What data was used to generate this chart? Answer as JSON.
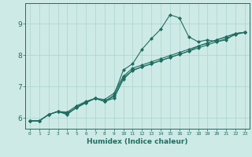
{
  "xlabel": "Humidex (Indice chaleur)",
  "background_color": "#ceeae6",
  "grid_color": "#aad4ce",
  "line_color": "#1e6e60",
  "xlim": [
    -0.5,
    23.5
  ],
  "ylim": [
    5.65,
    9.65
  ],
  "xticks": [
    0,
    1,
    2,
    3,
    4,
    5,
    6,
    7,
    8,
    9,
    10,
    11,
    12,
    13,
    14,
    15,
    16,
    17,
    18,
    19,
    20,
    21,
    22,
    23
  ],
  "yticks": [
    6,
    7,
    8,
    9
  ],
  "series": [
    [
      5.9,
      5.9,
      6.1,
      6.2,
      6.1,
      6.35,
      6.5,
      6.62,
      6.52,
      6.68,
      7.28,
      7.5,
      7.62,
      7.72,
      7.82,
      7.92,
      8.02,
      8.12,
      8.22,
      8.32,
      8.42,
      8.52,
      8.65,
      8.72
    ],
    [
      5.9,
      5.9,
      6.1,
      6.2,
      6.18,
      6.38,
      6.52,
      6.62,
      6.58,
      6.78,
      7.32,
      7.58,
      7.68,
      7.78,
      7.88,
      7.98,
      8.08,
      8.18,
      8.28,
      8.38,
      8.48,
      8.58,
      8.68,
      8.72
    ],
    [
      5.9,
      5.9,
      6.1,
      6.2,
      6.15,
      6.32,
      6.48,
      6.62,
      6.52,
      6.72,
      7.52,
      7.72,
      8.18,
      8.52,
      8.82,
      9.28,
      9.18,
      8.58,
      8.42,
      8.48,
      8.42,
      8.48,
      8.68,
      8.72
    ],
    [
      5.9,
      5.9,
      6.1,
      6.2,
      6.12,
      6.32,
      6.48,
      6.62,
      6.52,
      6.62,
      7.22,
      7.52,
      7.62,
      7.72,
      7.82,
      7.92,
      8.02,
      8.12,
      8.28,
      8.38,
      8.48,
      8.58,
      8.68,
      8.72
    ]
  ]
}
